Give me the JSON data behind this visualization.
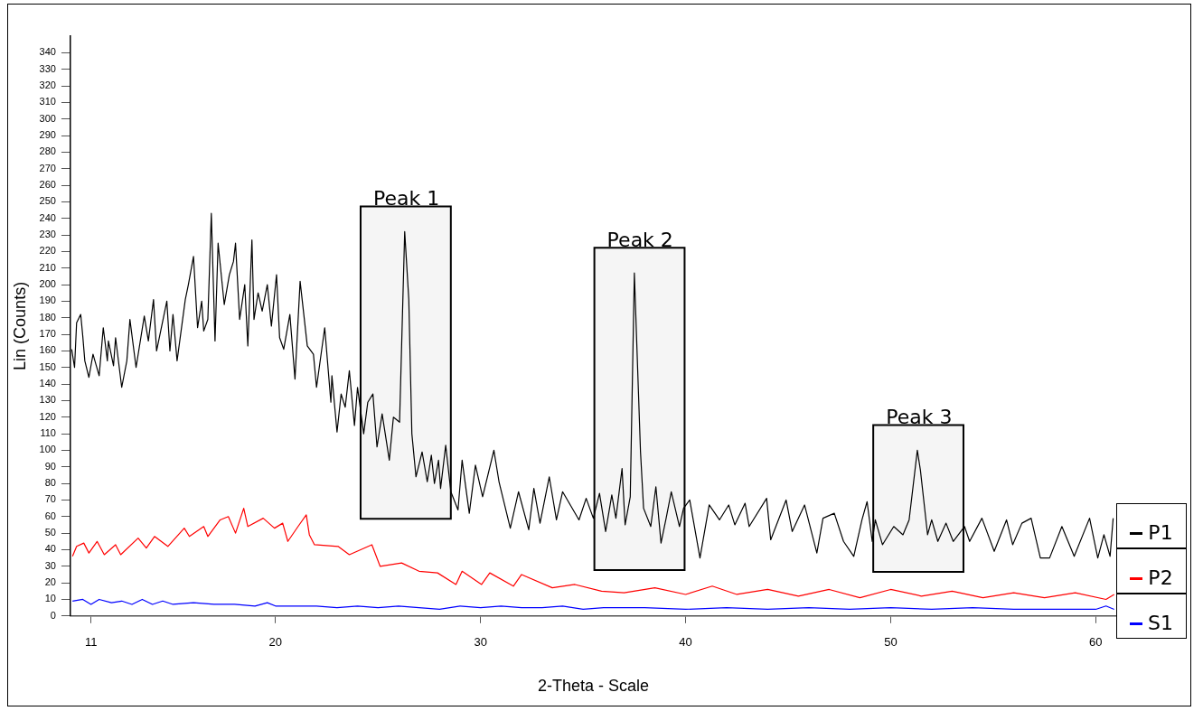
{
  "chart_data": {
    "type": "line",
    "xlabel": "2-Theta - Scale",
    "ylabel": "Lin (Counts)",
    "xlim": [
      10,
      61
    ],
    "ylim": [
      0,
      350
    ],
    "xticks": [
      11,
      20,
      30,
      40,
      50,
      60
    ],
    "yticks": [
      0,
      10,
      20,
      30,
      40,
      50,
      60,
      70,
      80,
      90,
      100,
      110,
      120,
      130,
      140,
      150,
      160,
      170,
      180,
      190,
      200,
      210,
      220,
      230,
      240,
      250,
      260,
      270,
      280,
      290,
      300,
      310,
      320,
      330,
      340
    ],
    "legend": "right",
    "bands": [
      {
        "axis": "x",
        "from": 24.15,
        "to": 28.55,
        "label": "Peak 1"
      },
      {
        "axis": "x",
        "from": 35.55,
        "to": 39.95,
        "label": "Peak 2"
      },
      {
        "axis": "x",
        "from": 49.15,
        "to": 53.55,
        "label": "Peak 3"
      }
    ],
    "series": [
      {
        "name": "P1",
        "color": "#000000",
        "x": [
          10.06,
          10.2,
          10.3,
          10.5,
          10.6,
          10.7,
          10.9,
          11.1,
          11.4,
          11.6,
          11.8,
          11.85,
          12.1,
          12.2,
          12.5,
          12.75,
          12.9,
          13.2,
          13.6,
          13.8,
          14.05,
          14.2,
          14.7,
          14.85,
          15.0,
          15.2,
          15.6,
          15.75,
          16.0,
          16.2,
          16.4,
          16.5,
          16.7,
          16.87,
          17.05,
          17.2,
          17.5,
          17.75,
          17.95,
          18.05,
          18.25,
          18.5,
          18.65,
          18.85,
          18.95,
          19.15,
          19.35,
          19.6,
          19.8,
          20.05,
          20.2,
          20.4,
          20.7,
          20.95,
          21.2,
          21.55,
          21.85,
          22.0,
          22.4,
          22.7,
          22.75,
          23.0,
          23.2,
          23.4,
          23.6,
          23.85,
          24.0,
          24.3,
          24.5,
          24.75,
          24.95,
          25.2,
          25.55,
          25.75,
          26.05,
          26.3,
          26.5,
          26.65,
          26.85,
          27.15,
          27.4,
          27.6,
          27.75,
          27.95,
          28.05,
          28.3,
          28.55,
          28.9,
          29.1,
          29.45,
          29.75,
          30.1,
          30.65,
          30.9,
          31.45,
          31.85,
          32.35,
          32.6,
          32.9,
          33.35,
          33.7,
          34.0,
          34.8,
          35.15,
          35.5,
          35.8,
          36.1,
          36.4,
          36.6,
          36.9,
          37.05,
          37.3,
          37.5,
          37.8,
          37.95,
          38.3,
          38.55,
          38.8,
          39.05,
          39.3,
          39.7,
          39.9,
          40.2,
          40.7,
          41.15,
          41.65,
          42.1,
          42.4,
          42.9,
          43.1,
          43.95,
          44.15,
          44.9,
          45.2,
          45.8,
          46.4,
          46.7,
          47.25,
          47.7,
          48.2,
          48.6,
          48.85,
          49.1,
          49.25,
          49.6,
          50.15,
          50.6,
          50.9,
          51.3,
          51.45,
          51.8,
          52.0,
          52.3,
          52.7,
          53.05,
          53.6,
          53.85,
          54.45,
          55.05,
          55.65,
          55.95,
          56.4,
          56.85,
          57.3,
          57.75,
          58.35,
          58.95,
          59.7,
          60.1,
          60.4,
          60.7,
          60.85
        ],
        "values": [
          161,
          150,
          177,
          182,
          169,
          154,
          144,
          158,
          145,
          174,
          154,
          166,
          151,
          168,
          138,
          154,
          179,
          150,
          181,
          166,
          191,
          160,
          190,
          160,
          182,
          154,
          191,
          200,
          217,
          174,
          190,
          172,
          179,
          243,
          166,
          225,
          188,
          206,
          214,
          225,
          179,
          200,
          163,
          227,
          179,
          195,
          184,
          200,
          175,
          206,
          168,
          161,
          182,
          143,
          202,
          163,
          158,
          138,
          174,
          129,
          145,
          111,
          134,
          126,
          148,
          115,
          138,
          110,
          129,
          134,
          102,
          122,
          94,
          120,
          117,
          232,
          191,
          110,
          84,
          99,
          81,
          97,
          80,
          94,
          77,
          103,
          75,
          64,
          94,
          62,
          91,
          72,
          100,
          81,
          53,
          75,
          52,
          77,
          56,
          84,
          58,
          75,
          58,
          71,
          59,
          74,
          51,
          73,
          59,
          89,
          55,
          72,
          207,
          99,
          65,
          54,
          78,
          44,
          59,
          75,
          54,
          65,
          70,
          35,
          67,
          58,
          67,
          55,
          68,
          54,
          71,
          46,
          70,
          51,
          67,
          38,
          59,
          62,
          45,
          36,
          58,
          69,
          45,
          58,
          43,
          54,
          49,
          58,
          100,
          88,
          49,
          58,
          45,
          56,
          45,
          54,
          45,
          59,
          39,
          58,
          43,
          56,
          59,
          35,
          35,
          54,
          36,
          59,
          35,
          49,
          36,
          59
        ]
      },
      {
        "name": "P2",
        "color": "#ff0000",
        "x": [
          10.1,
          10.3,
          10.65,
          10.9,
          11.3,
          11.65,
          12.2,
          12.45,
          13.3,
          13.7,
          14.1,
          14.75,
          15.55,
          15.8,
          16.5,
          16.7,
          17.3,
          17.7,
          18.05,
          18.45,
          18.65,
          19.4,
          19.95,
          20.35,
          20.6,
          21.1,
          21.5,
          21.65,
          21.9,
          23.05,
          23.6,
          24.15,
          24.7,
          25.1,
          26.15,
          27.0,
          27.9,
          28.8,
          29.1,
          30.05,
          30.45,
          31.6,
          32.0,
          33.5,
          34.6,
          35.9,
          37.0,
          38.5,
          40.0,
          41.3,
          42.5,
          44.0,
          45.5,
          47.0,
          48.5,
          50.0,
          51.5,
          53.0,
          54.5,
          56.0,
          57.5,
          59.0,
          60.5,
          60.9
        ],
        "values": [
          36,
          42,
          44,
          38,
          45,
          37,
          43,
          37,
          47,
          41,
          48,
          42,
          53,
          48,
          54,
          48,
          58,
          60,
          50,
          65,
          54,
          59,
          53,
          56,
          45,
          54,
          61,
          49,
          43,
          42,
          37,
          40,
          43,
          30,
          32,
          27,
          26,
          19,
          27,
          19,
          26,
          18,
          25,
          17,
          19,
          15,
          14,
          17,
          13,
          18,
          13,
          16,
          12,
          16,
          11,
          16,
          12,
          15,
          11,
          14,
          11,
          14,
          10,
          13
        ]
      },
      {
        "name": "S1",
        "color": "#0000ff",
        "x": [
          10.1,
          10.6,
          11.0,
          11.4,
          12.0,
          12.5,
          13.0,
          13.5,
          14.0,
          14.5,
          15.0,
          16.0,
          17.0,
          18.0,
          19.0,
          19.6,
          20.0,
          21.0,
          22.0,
          23.0,
          24.0,
          25.0,
          26.0,
          27.0,
          28.0,
          29.0,
          30.0,
          31.0,
          32.0,
          33.0,
          34.0,
          35.0,
          36.0,
          38.0,
          40.0,
          42.0,
          44.0,
          46.0,
          48.0,
          50.0,
          52.0,
          54.0,
          56.0,
          58.0,
          60.0,
          60.5,
          60.9
        ],
        "values": [
          9,
          10,
          7,
          10,
          8,
          9,
          7,
          10,
          7,
          9,
          7,
          8,
          7,
          7,
          6,
          8,
          6,
          6,
          6,
          5,
          6,
          5,
          6,
          5,
          4,
          6,
          5,
          6,
          5,
          5,
          6,
          4,
          5,
          5,
          4,
          5,
          4,
          5,
          4,
          5,
          4,
          5,
          4,
          4,
          4,
          6,
          4
        ]
      }
    ]
  }
}
